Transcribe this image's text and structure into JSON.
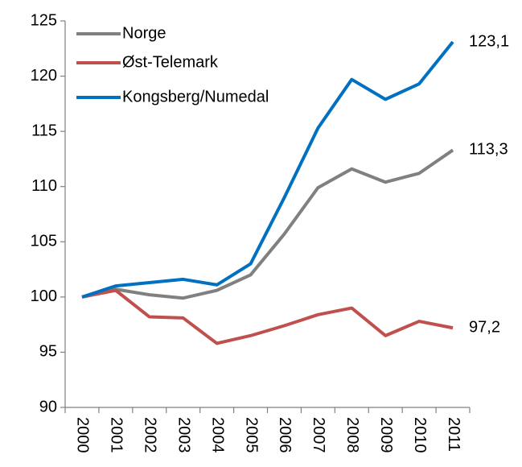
{
  "chart_data": {
    "type": "line",
    "categories": [
      "2000",
      "2001",
      "2002",
      "2003",
      "2004",
      "2005",
      "2006",
      "2007",
      "2008",
      "2009",
      "2010",
      "2011"
    ],
    "series": [
      {
        "name": "Norge",
        "color": "#808080",
        "values": [
          100,
          100.7,
          100.2,
          99.9,
          100.6,
          102,
          105.7,
          109.9,
          111.6,
          110.4,
          111.2,
          113.3
        ],
        "value_labels": [
          null,
          null,
          null,
          null,
          null,
          null,
          null,
          null,
          null,
          null,
          null,
          "113,3"
        ]
      },
      {
        "name": "Øst-Telemark",
        "color": "#c0504d",
        "values": [
          100,
          100.6,
          98.2,
          98.1,
          95.8,
          96.5,
          97.4,
          98.4,
          99,
          96.5,
          97.8,
          97.2
        ],
        "value_labels": [
          null,
          null,
          null,
          null,
          null,
          null,
          null,
          null,
          null,
          null,
          null,
          "97,2"
        ]
      },
      {
        "name": "Kongsberg/Numedal",
        "color": "#0070c0",
        "values": [
          100,
          101,
          101.3,
          101.6,
          101.1,
          103,
          109,
          115.3,
          119.7,
          117.9,
          119.3,
          123.1
        ],
        "value_labels": [
          null,
          null,
          null,
          null,
          null,
          null,
          null,
          null,
          null,
          null,
          null,
          "123,1"
        ]
      }
    ],
    "ylim": [
      90,
      125
    ],
    "yticks": [
      90,
      95,
      100,
      105,
      110,
      115,
      120,
      125
    ],
    "legend": "upper left"
  }
}
